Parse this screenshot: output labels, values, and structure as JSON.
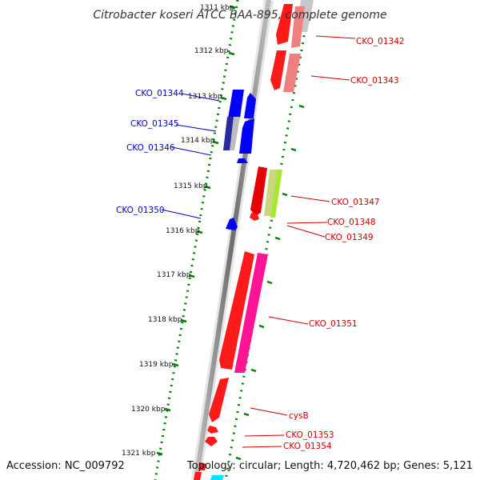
{
  "title": "Citrobacter koseri ATCC BAA-895, complete genome",
  "accession": "Accession: NC_009792",
  "topology": "Topology: circular; Length: 4,720,462 bp; Genes: 5,121",
  "kbp_ticks": [
    "1311 kbp",
    "1312 kbp",
    "1313 kbp",
    "1314 kbp",
    "1315 kbp",
    "1316 kbp",
    "1317 kbp",
    "1318 kbp",
    "1319 kbp",
    "1320 kbp",
    "1321 kbp"
  ],
  "genes_left": [
    "CKO_01344",
    "CKO_01345",
    "CKO_01346",
    "CKO_01350"
  ],
  "genes_right": [
    "CKO_01342",
    "CKO_01343",
    "CKO_01347",
    "CKO_01348",
    "CKO_01349",
    "CKO_01351",
    "cysB",
    "CKO_01353",
    "CKO_01354"
  ],
  "colors": {
    "forward_gene": "#ff0000",
    "reverse_gene": "#0000ff",
    "left_label": "#0000cc",
    "right_label": "#cc0000",
    "tick_green": "#008000",
    "backbone": "#888888"
  }
}
